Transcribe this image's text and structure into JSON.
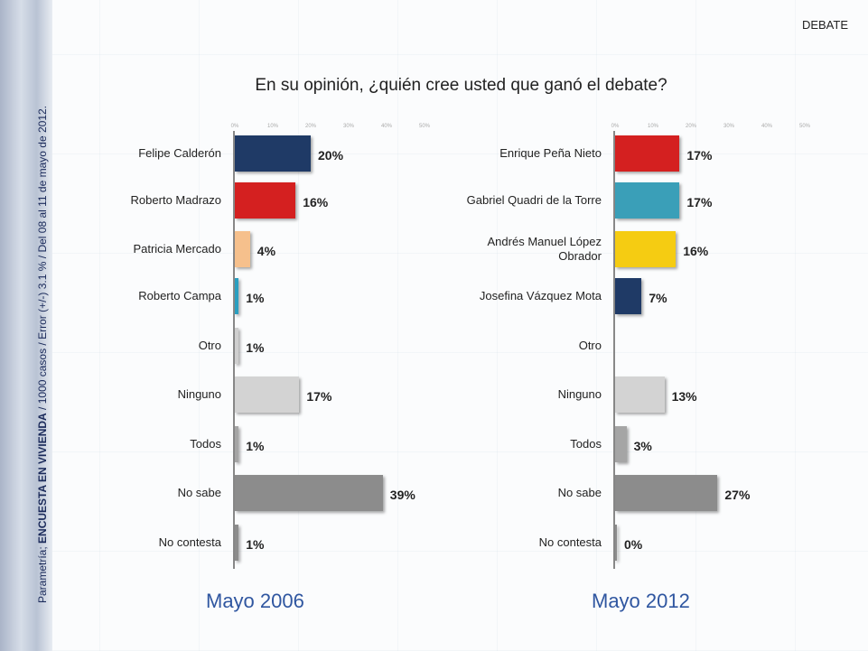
{
  "header": {
    "tag": "DEBATE",
    "title": "En su opinión, ¿quién cree usted que ganó el debate?"
  },
  "side_note": {
    "prefix": "Parametría; ",
    "bold": "ENCUESTA EN VIVIENDA",
    "rest": " / 1000 casos / Error (+/-) 3.1 % / Del 08 al 11 de mayo de 2012."
  },
  "chart_data": [
    {
      "type": "bar",
      "orientation": "horizontal",
      "title": "Mayo 2006",
      "xlim": [
        0,
        50
      ],
      "ticks": [
        "0%",
        "10%",
        "20%",
        "30%",
        "40%",
        "50%"
      ],
      "categories": [
        "Felipe Calderón",
        "Roberto Madrazo",
        "Patricia Mercado",
        "Roberto Campa",
        "Otro",
        "Ninguno",
        "Todos",
        "No sabe",
        "No contesta"
      ],
      "values": [
        20,
        16,
        4,
        1,
        1,
        17,
        1,
        39,
        1
      ],
      "labels": [
        "20%",
        "16%",
        "4%",
        "1%",
        "1%",
        "17%",
        "1%",
        "39%",
        "1%"
      ],
      "colors": [
        "#1f3a66",
        "#d42020",
        "#f6c08c",
        "#2a9fc0",
        "#cfcfcf",
        "#d3d3d3",
        "#a5a5a5",
        "#8c8c8c",
        "#8c8c8c"
      ]
    },
    {
      "type": "bar",
      "orientation": "horizontal",
      "title": "Mayo 2012",
      "xlim": [
        0,
        50
      ],
      "ticks": [
        "0%",
        "10%",
        "20%",
        "30%",
        "40%",
        "50%"
      ],
      "categories": [
        "Enrique Peña Nieto",
        "Gabriel Quadri de la Torre",
        "Andrés Manuel López Obrador",
        "Josefina Vázquez Mota",
        "Otro",
        "Ninguno",
        "Todos",
        "No sabe",
        "No contesta"
      ],
      "values": [
        17,
        17,
        16,
        7,
        null,
        13,
        3,
        27,
        0
      ],
      "labels": [
        "17%",
        "17%",
        "16%",
        "7%",
        "",
        "13%",
        "3%",
        "27%",
        "0%"
      ],
      "colors": [
        "#d42020",
        "#3a9fb8",
        "#f5cc12",
        "#1f3a66",
        "#cfcfcf",
        "#d3d3d3",
        "#a5a5a5",
        "#8c8c8c",
        "#8c8c8c"
      ]
    }
  ]
}
